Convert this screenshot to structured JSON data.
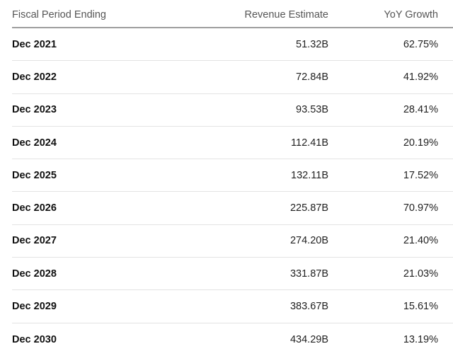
{
  "table": {
    "headers": {
      "period": "Fiscal Period Ending",
      "revenue": "Revenue Estimate",
      "growth": "YoY Growth"
    },
    "rows": [
      {
        "period": "Dec 2021",
        "revenue": "51.32B",
        "growth": "62.75%"
      },
      {
        "period": "Dec 2022",
        "revenue": "72.84B",
        "growth": "41.92%"
      },
      {
        "period": "Dec 2023",
        "revenue": "93.53B",
        "growth": "28.41%"
      },
      {
        "period": "Dec 2024",
        "revenue": "112.41B",
        "growth": "20.19%"
      },
      {
        "period": "Dec 2025",
        "revenue": "132.11B",
        "growth": "17.52%"
      },
      {
        "period": "Dec 2026",
        "revenue": "225.87B",
        "growth": "70.97%"
      },
      {
        "period": "Dec 2027",
        "revenue": "274.20B",
        "growth": "21.40%"
      },
      {
        "period": "Dec 2028",
        "revenue": "331.87B",
        "growth": "21.03%"
      },
      {
        "period": "Dec 2029",
        "revenue": "383.67B",
        "growth": "15.61%"
      },
      {
        "period": "Dec 2030",
        "revenue": "434.29B",
        "growth": "13.19%"
      }
    ]
  }
}
